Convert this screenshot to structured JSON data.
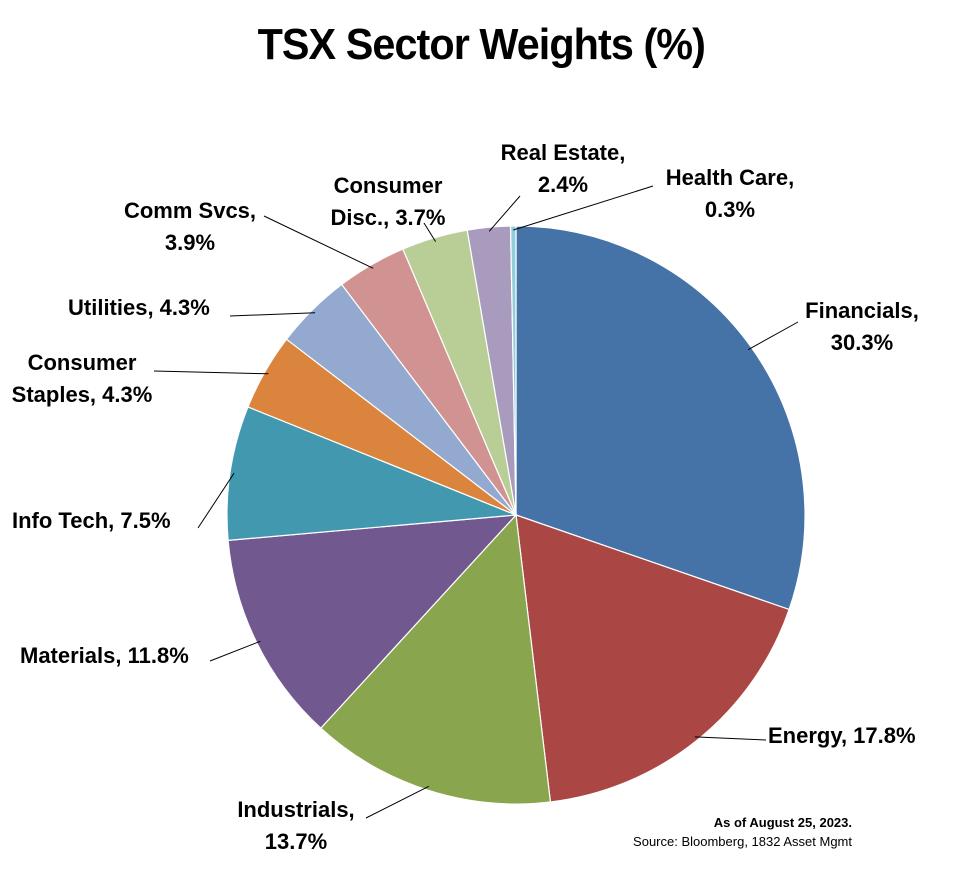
{
  "chart_data": {
    "type": "pie",
    "title": "TSX Sector Weights (%)",
    "slices": [
      {
        "name": "Financials",
        "value": 30.3,
        "color": "#4572A7",
        "label_lines": [
          "Financials,",
          "30.3%"
        ]
      },
      {
        "name": "Energy",
        "value": 17.8,
        "color": "#AA4643",
        "label_lines": [
          "Energy, 17.8%"
        ]
      },
      {
        "name": "Industrials",
        "value": 13.7,
        "color": "#89A54E",
        "label_lines": [
          "Industrials,",
          "13.7%"
        ]
      },
      {
        "name": "Materials",
        "value": 11.8,
        "color": "#71588F",
        "label_lines": [
          "Materials, 11.8%"
        ]
      },
      {
        "name": "Info Tech",
        "value": 7.5,
        "color": "#4198AF",
        "label_lines": [
          "Info Tech, 7.5%"
        ]
      },
      {
        "name": "Consumer Staples",
        "value": 4.3,
        "color": "#DB843D",
        "label_lines": [
          "Consumer",
          "Staples, 4.3%"
        ]
      },
      {
        "name": "Utilities",
        "value": 4.3,
        "color": "#93A9CF",
        "label_lines": [
          "Utilities, 4.3%"
        ]
      },
      {
        "name": "Comm Svcs",
        "value": 3.9,
        "color": "#D19392",
        "label_lines": [
          "Comm Svcs,",
          "3.9%"
        ]
      },
      {
        "name": "Consumer Disc.",
        "value": 3.7,
        "color": "#B9CD96",
        "label_lines": [
          "Consumer",
          "Disc., 3.7%"
        ]
      },
      {
        "name": "Real Estate",
        "value": 2.4,
        "color": "#A99BBD",
        "label_lines": [
          "Real Estate,",
          "2.4%"
        ]
      },
      {
        "name": "Health Care",
        "value": 0.3,
        "color": "#92CDDC",
        "label_lines": [
          "Health Care,",
          "0.3%"
        ]
      }
    ]
  },
  "footer": {
    "as_of": "As of August 25, 2023.",
    "source": "Source: Bloomberg, 1832 Asset Mgmt"
  }
}
